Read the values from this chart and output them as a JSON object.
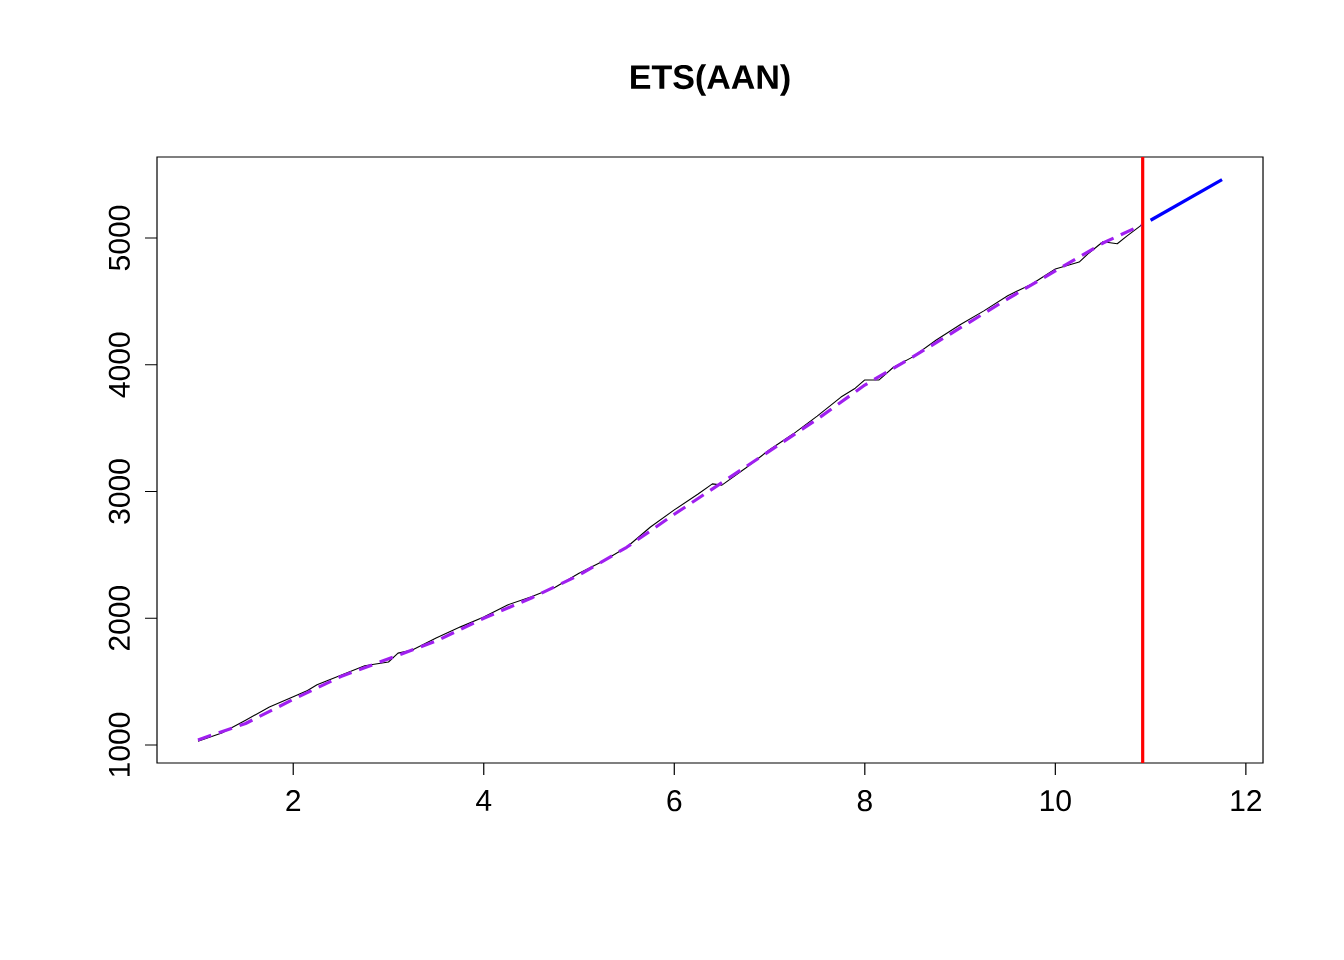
{
  "chart_data": {
    "type": "line",
    "title": "ETS(AAN)",
    "xlim": [
      0.57,
      12.18
    ],
    "ylim": [
      858,
      5639
    ],
    "xticks": [
      2,
      4,
      6,
      8,
      10,
      12
    ],
    "yticks": [
      1000,
      2000,
      3000,
      4000,
      5000
    ],
    "grid": false,
    "series": [
      {
        "color": "#000000",
        "line_style": "solid",
        "x": [
          1,
          1.25,
          1.5,
          1.75,
          2.0,
          2.15,
          2.25,
          2.5,
          2.75,
          3.0,
          3.1,
          3.25,
          3.5,
          3.75,
          4.0,
          4.25,
          4.5,
          4.75,
          5.0,
          5.25,
          5.5,
          5.75,
          6.0,
          6.25,
          6.4,
          6.5,
          6.75,
          7.0,
          7.25,
          7.5,
          7.75,
          7.9,
          8.0,
          8.15,
          8.3,
          8.5,
          8.75,
          9.0,
          9.25,
          9.5,
          9.75,
          10.0,
          10.25,
          10.35,
          10.5,
          10.65,
          10.75,
          10.9
        ],
        "values": [
          1030,
          1095,
          1195,
          1300,
          1380,
          1430,
          1475,
          1550,
          1625,
          1655,
          1725,
          1750,
          1845,
          1930,
          2010,
          2105,
          2170,
          2245,
          2355,
          2450,
          2560,
          2720,
          2855,
          2980,
          3060,
          3050,
          3185,
          3330,
          3455,
          3595,
          3745,
          3815,
          3880,
          3880,
          3980,
          4060,
          4195,
          4315,
          4425,
          4545,
          4635,
          4755,
          4810,
          4880,
          4970,
          4955,
          5015,
          5100
        ]
      },
      {
        "color": "#a020f0",
        "line_style": "dashed",
        "x": [
          1,
          1.5,
          2,
          2.5,
          3,
          3.5,
          4,
          4.5,
          5,
          5.5,
          6,
          6.5,
          7,
          7.5,
          8,
          8.5,
          9,
          9.5,
          10,
          10.5,
          10.9
        ],
        "values": [
          1040,
          1170,
          1360,
          1540,
          1680,
          1820,
          2000,
          2160,
          2340,
          2560,
          2820,
          3070,
          3320,
          3570,
          3840,
          4060,
          4290,
          4520,
          4740,
          4960,
          5100
        ]
      },
      {
        "color": "#0000ff",
        "line_style": "solid",
        "x": [
          11.0,
          11.75
        ],
        "values": [
          5140,
          5460
        ]
      }
    ],
    "ref_lines": [
      {
        "axis": "x",
        "value": 10.917,
        "color": "#ff0000"
      }
    ]
  }
}
